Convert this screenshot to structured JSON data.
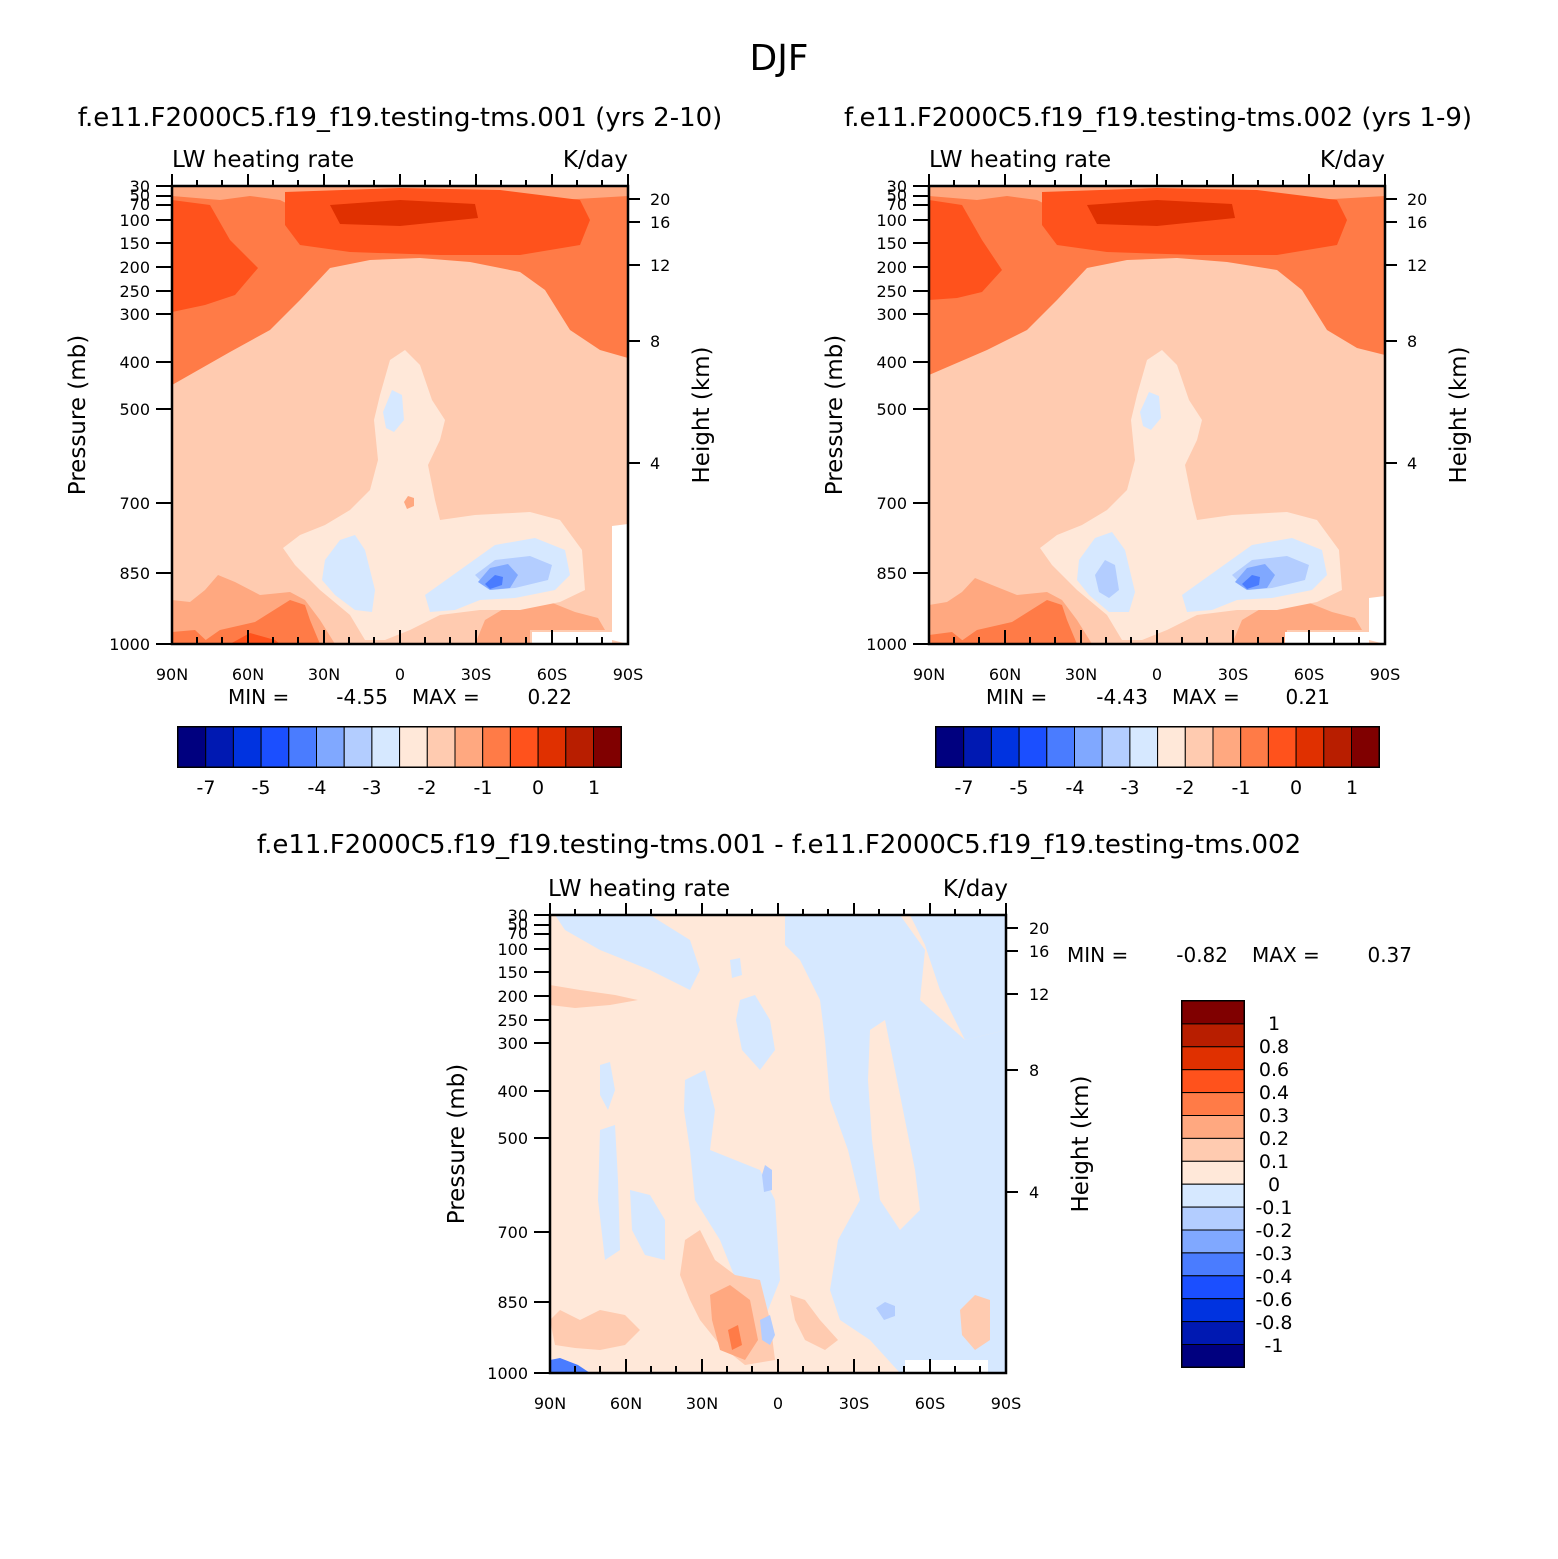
{
  "title": "DJF",
  "chart_data": [
    {
      "type": "heatmap",
      "panel": "case1",
      "title": "f.e11.F2000C5.f19_f19.testing-tms.001 (yrs 2-10)",
      "left_label": "LW heating rate",
      "right_label": "K/day",
      "xlabel": "",
      "ylabel": "Pressure (mb)",
      "y2label": "Height (km)",
      "x_ticks": [
        "90N",
        "60N",
        "30N",
        "0",
        "30S",
        "60S",
        "90S"
      ],
      "y_ticks": [
        "30",
        "50",
        "70",
        "100",
        "150",
        "200",
        "250",
        "300",
        "400",
        "500",
        "700",
        "850",
        "1000"
      ],
      "y2_ticks": [
        "20",
        "16",
        "12",
        "8",
        "4"
      ],
      "min_label": "MIN =",
      "min": "-4.55",
      "max_label": "MAX =",
      "max": "0.22",
      "levels": [
        "-7",
        "-5",
        "-4",
        "-3",
        "-2",
        "-1",
        "0",
        "1"
      ],
      "colors": [
        "#00007f",
        "#0019b2",
        "#0033e0",
        "#1b4fff",
        "#4a7cff",
        "#80a8ff",
        "#b3cdff",
        "#d6e8ff",
        "#ffe8d9",
        "#ffcbb0",
        "#ffa880",
        "#ff7b47",
        "#ff521c",
        "#e03000",
        "#b81e00",
        "#800000"
      ]
    },
    {
      "type": "heatmap",
      "panel": "case2",
      "title": "f.e11.F2000C5.f19_f19.testing-tms.002 (yrs 1-9)",
      "left_label": "LW heating rate",
      "right_label": "K/day",
      "xlabel": "",
      "ylabel": "Pressure (mb)",
      "y2label": "Height (km)",
      "x_ticks": [
        "90N",
        "60N",
        "30N",
        "0",
        "30S",
        "60S",
        "90S"
      ],
      "y_ticks": [
        "30",
        "50",
        "70",
        "100",
        "150",
        "200",
        "250",
        "300",
        "400",
        "500",
        "700",
        "850",
        "1000"
      ],
      "y2_ticks": [
        "20",
        "16",
        "12",
        "8",
        "4"
      ],
      "min_label": "MIN =",
      "min": "-4.43",
      "max_label": "MAX =",
      "max": "0.21",
      "levels": [
        "-7",
        "-5",
        "-4",
        "-3",
        "-2",
        "-1",
        "0",
        "1"
      ],
      "colors": [
        "#00007f",
        "#0019b2",
        "#0033e0",
        "#1b4fff",
        "#4a7cff",
        "#80a8ff",
        "#b3cdff",
        "#d6e8ff",
        "#ffe8d9",
        "#ffcbb0",
        "#ffa880",
        "#ff7b47",
        "#ff521c",
        "#e03000",
        "#b81e00",
        "#800000"
      ]
    },
    {
      "type": "heatmap",
      "panel": "diff",
      "title": "f.e11.F2000C5.f19_f19.testing-tms.001 - f.e11.F2000C5.f19_f19.testing-tms.002",
      "left_label": "LW heating rate",
      "right_label": "K/day",
      "xlabel": "",
      "ylabel": "Pressure (mb)",
      "y2label": "Height (km)",
      "x_ticks": [
        "90N",
        "60N",
        "30N",
        "0",
        "30S",
        "60S",
        "90S"
      ],
      "y_ticks": [
        "30",
        "50",
        "70",
        "100",
        "150",
        "200",
        "250",
        "300",
        "400",
        "500",
        "700",
        "850",
        "1000"
      ],
      "y2_ticks": [
        "20",
        "16",
        "12",
        "8",
        "4"
      ],
      "min_label": "MIN =",
      "min": "-0.82",
      "max_label": "MAX =",
      "max": "0.37",
      "levels": [
        "1",
        "0.8",
        "0.6",
        "0.4",
        "0.3",
        "0.2",
        "0.1",
        "0",
        "-0.1",
        "-0.2",
        "-0.3",
        "-0.4",
        "-0.6",
        "-0.8",
        "-1"
      ],
      "colors": [
        "#800000",
        "#b81e00",
        "#e03000",
        "#ff521c",
        "#ff7b47",
        "#ffa880",
        "#ffcbb0",
        "#ffe8d9",
        "#d6e8ff",
        "#b3cdff",
        "#80a8ff",
        "#4a7cff",
        "#1b4fff",
        "#0033e0",
        "#0019b2",
        "#00007f"
      ]
    }
  ]
}
